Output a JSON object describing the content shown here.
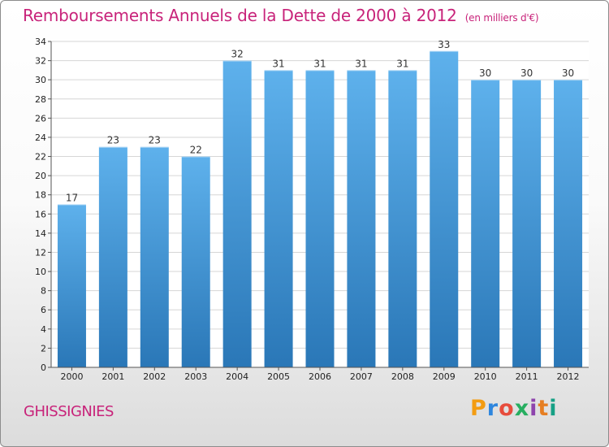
{
  "header": {
    "title": "Remboursements Annuels de la Dette de 2000 à 2012",
    "unit": "(en milliers d'€)"
  },
  "footer": {
    "commune": "GHISSIGNIES",
    "brand_letters": [
      "P",
      "r",
      "o",
      "x",
      "i",
      "t",
      "i"
    ],
    "brand_colors": [
      "#f39c12",
      "#2e86de",
      "#e74c3c",
      "#27ae60",
      "#8e44ad",
      "#e67e22",
      "#16a085"
    ]
  },
  "chart_data": {
    "type": "bar",
    "title": "Remboursements Annuels de la Dette de 2000 à 2012",
    "subtitle": "(en milliers d'€)",
    "categories": [
      "2000",
      "2001",
      "2002",
      "2003",
      "2004",
      "2005",
      "2006",
      "2007",
      "2008",
      "2009",
      "2010",
      "2011",
      "2012"
    ],
    "values": [
      17,
      23,
      23,
      22,
      32,
      31,
      31,
      31,
      31,
      33,
      30,
      30,
      30
    ],
    "ylim": [
      0,
      34
    ],
    "yticks": [
      0,
      2,
      4,
      6,
      8,
      10,
      12,
      14,
      16,
      18,
      20,
      22,
      24,
      26,
      28,
      30,
      32,
      34
    ],
    "grid": true,
    "colors": {
      "bar_top": "#5eb1ec",
      "bar_bottom": "#2a77b7",
      "grid": "#d6d6d6",
      "title": "#c8237a"
    }
  }
}
